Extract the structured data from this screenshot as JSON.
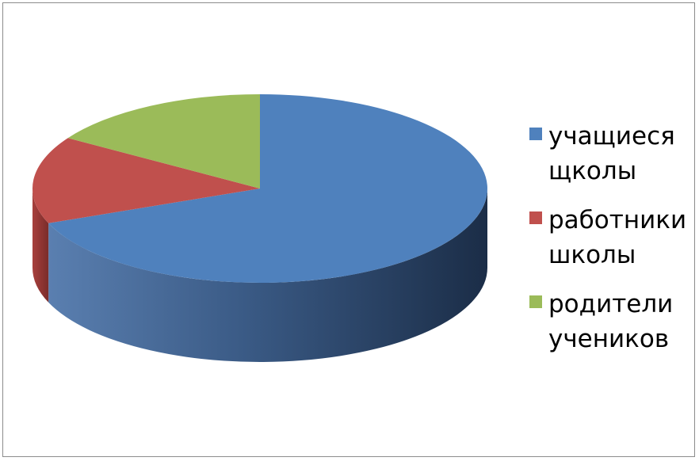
{
  "chart_data": {
    "type": "pie",
    "style": "3d",
    "categories": [
      "учащиеся щколы",
      "работники школы",
      "родители учеников"
    ],
    "values": [
      69,
      15,
      16
    ],
    "colors": [
      "#4f81bd",
      "#c0504d",
      "#9bbb59"
    ],
    "legend_position": "right"
  }
}
